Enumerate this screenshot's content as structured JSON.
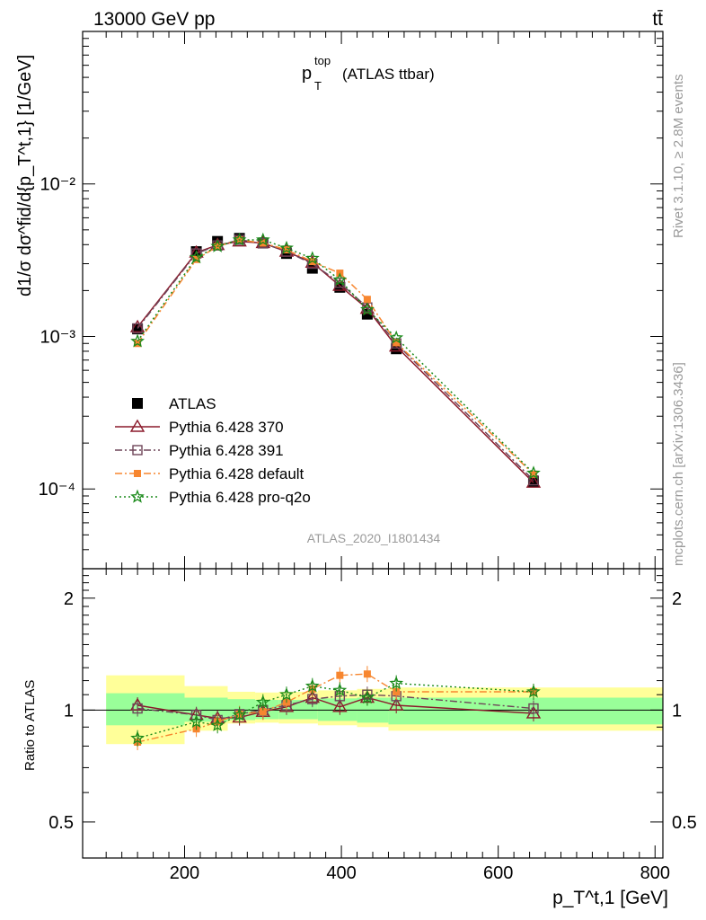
{
  "header": {
    "process": "13000 GeV pp",
    "final_state": "tt̄"
  },
  "side_labels": {
    "rivet": "Rivet 3.1.10, ≥ 2.8M events",
    "mcplots": "mcplots.cern.ch [arXiv:1306.3436]"
  },
  "analysis_id": "ATLAS_2020_I1801434",
  "colors": {
    "data": "#000000",
    "p370": "#8b1a2b",
    "p391": "#6e4559",
    "default": "#f7862f",
    "proq2o": "#1a8a1a",
    "band_inner": "#99ff99",
    "band_outer": "#ffff99"
  },
  "chart_data": [
    {
      "type": "line",
      "panel": "main",
      "title_main": "p",
      "title_sup": "top",
      "title_sub": "T",
      "title_tail": "(ATLAS ttbar)",
      "ylabel": "d1/σ dσ^fid/d{p_T^t,1} [1/GeV]",
      "yscale": "log",
      "ylim": [
        3e-05,
        0.1
      ],
      "xlim": [
        70,
        810
      ],
      "ytick_labels": [
        "10⁻⁴",
        "10⁻³",
        "10⁻²"
      ],
      "x": [
        140,
        215,
        242,
        270,
        300,
        330,
        363,
        398,
        433,
        470,
        645
      ],
      "series": [
        {
          "name": "ATLAS",
          "key": "data",
          "values": [
            0.00112,
            0.0036,
            0.0042,
            0.0044,
            0.0041,
            0.0035,
            0.0028,
            0.0021,
            0.0014,
            0.00083,
            0.000112
          ]
        },
        {
          "name": "Pythia 6.428 370",
          "key": "p370",
          "values": [
            0.00115,
            0.00355,
            0.00398,
            0.0042,
            0.0041,
            0.0036,
            0.00305,
            0.00215,
            0.00152,
            0.00086,
            0.00011
          ]
        },
        {
          "name": "Pythia 6.428 391",
          "key": "p391",
          "values": [
            0.00113,
            0.0035,
            0.00395,
            0.0043,
            0.0041,
            0.0036,
            0.003,
            0.00225,
            0.00155,
            0.0009,
            0.000114
          ]
        },
        {
          "name": "Pythia 6.428 default",
          "key": "default",
          "values": [
            0.0009,
            0.0032,
            0.0039,
            0.0043,
            0.0041,
            0.0037,
            0.0031,
            0.0026,
            0.00175,
            0.00091,
            0.000125
          ]
        },
        {
          "name": "Pythia 6.428 pro-q2o",
          "key": "proq2o",
          "values": [
            0.00093,
            0.0033,
            0.0039,
            0.0043,
            0.0043,
            0.0038,
            0.00325,
            0.00235,
            0.0015,
            0.00098,
            0.000127
          ]
        }
      ]
    },
    {
      "type": "line",
      "panel": "ratio",
      "ylabel": "Ratio to ATLAS",
      "xlabel": "p_T^t,1 [GeV]",
      "yscale": "log",
      "ylim": [
        0.4,
        2.4
      ],
      "xlim": [
        70,
        810
      ],
      "ytick_labels": [
        "0.5",
        "1",
        "2"
      ],
      "xtick_labels": [
        "200",
        "400",
        "600",
        "800"
      ],
      "x": [
        140,
        215,
        242,
        270,
        300,
        330,
        363,
        398,
        433,
        470,
        645
      ],
      "bands": {
        "edges": [
          100,
          200,
          255,
          290,
          320,
          370,
          420,
          460,
          810
        ],
        "inner": [
          [
            0.91,
            1.11
          ],
          [
            0.93,
            1.08
          ],
          [
            0.94,
            1.07
          ],
          [
            0.945,
            1.065
          ],
          [
            0.945,
            1.065
          ],
          [
            0.935,
            1.075
          ],
          [
            0.925,
            1.08
          ],
          [
            0.915,
            1.08
          ]
        ],
        "outer": [
          [
            0.81,
            1.24
          ],
          [
            0.88,
            1.16
          ],
          [
            0.92,
            1.12
          ],
          [
            0.925,
            1.115
          ],
          [
            0.92,
            1.12
          ],
          [
            0.91,
            1.13
          ],
          [
            0.9,
            1.14
          ],
          [
            0.88,
            1.15
          ]
        ]
      },
      "series": [
        {
          "name": "Pythia 6.428 370",
          "key": "p370",
          "values": [
            1.03,
            0.97,
            0.95,
            0.955,
            0.99,
            1.02,
            1.08,
            1.02,
            1.08,
            1.03,
            0.98
          ]
        },
        {
          "name": "Pythia 6.428 391",
          "key": "p391",
          "values": [
            1.01,
            0.97,
            0.94,
            0.975,
            1.0,
            1.03,
            1.07,
            1.09,
            1.1,
            1.09,
            1.01
          ]
        },
        {
          "name": "Pythia 6.428 default",
          "key": "default",
          "values": [
            0.82,
            0.89,
            0.93,
            0.975,
            0.99,
            1.05,
            1.14,
            1.24,
            1.25,
            1.12,
            1.12
          ]
        },
        {
          "name": "Pythia 6.428 pro-q2o",
          "key": "proq2o",
          "values": [
            0.84,
            0.93,
            0.91,
            0.97,
            1.05,
            1.1,
            1.16,
            1.13,
            1.08,
            1.18,
            1.12
          ]
        }
      ]
    }
  ]
}
